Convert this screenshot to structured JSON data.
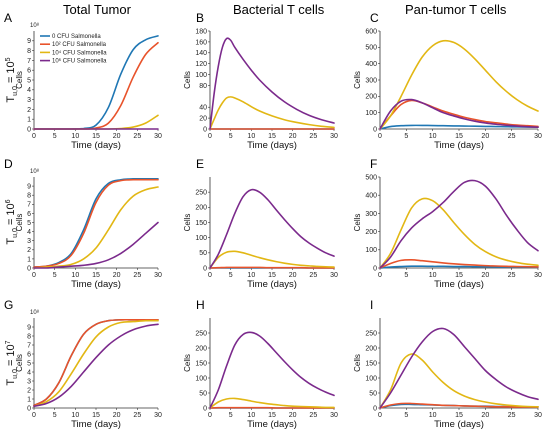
{
  "column_titles": [
    "Total Tumor",
    "Bacterial T cells",
    "Pan-tumor T cells"
  ],
  "row_labels": [
    {
      "main": "T",
      "sub": "u,0",
      "eq": " = 10",
      "sup": "5"
    },
    {
      "main": "T",
      "sub": "u,0",
      "eq": " = 10",
      "sup": "6"
    },
    {
      "main": "T",
      "sub": "u,0",
      "eq": " = 10",
      "sup": "7"
    }
  ],
  "legend": [
    {
      "label": "0 CFU Salmonella",
      "color": "#1f77b4"
    },
    {
      "label": "10² CFU Salmonella",
      "color": "#e8532b"
    },
    {
      "label": "10⁴ CFU Salmonella",
      "color": "#e2b714"
    },
    {
      "label": "10⁶ CFU Salmonella",
      "color": "#7b2a8c"
    }
  ],
  "chart_data": [
    {
      "panel": "A",
      "type": "line",
      "xlabel": "Time (days)",
      "ylabel": "Cells",
      "exponent_label": "10⁸",
      "xlim": [
        0,
        30
      ],
      "ylim": [
        0,
        10
      ],
      "xticks": [
        0,
        5,
        10,
        15,
        20,
        25,
        30
      ],
      "yticks": [
        0,
        1,
        2,
        3,
        4,
        5,
        6,
        7,
        8,
        9
      ],
      "x": [
        0,
        3,
        6,
        9,
        12,
        15,
        18,
        21,
        24,
        27,
        30
      ],
      "series": [
        {
          "name": "0 CFU Salmonella",
          "color": "#1f77b4",
          "values": [
            0,
            0,
            0,
            0,
            0.05,
            0.4,
            2.2,
            5.6,
            8.1,
            9.1,
            9.5
          ]
        },
        {
          "name": "10² CFU Salmonella",
          "color": "#e8532b",
          "values": [
            0,
            0,
            0,
            0,
            0,
            0.1,
            0.6,
            2.4,
            5.3,
            7.6,
            8.8
          ]
        },
        {
          "name": "10⁴ CFU Salmonella",
          "color": "#e2b714",
          "values": [
            0,
            0,
            0,
            0,
            0,
            0,
            0,
            0.05,
            0.2,
            0.6,
            1.4
          ]
        },
        {
          "name": "10⁶ CFU Salmonella",
          "color": "#7b2a8c",
          "values": [
            0,
            0,
            0,
            0,
            0,
            0,
            0,
            0,
            0,
            0,
            0
          ]
        }
      ]
    },
    {
      "panel": "B",
      "type": "line",
      "xlabel": "Time (days)",
      "ylabel": "Cells",
      "xlim": [
        0,
        30
      ],
      "ylim": [
        0,
        180
      ],
      "xticks": [
        0,
        5,
        10,
        15,
        20,
        25,
        30
      ],
      "yticks": [
        0,
        20,
        40,
        80,
        100,
        120,
        140,
        160,
        180
      ],
      "x": [
        0,
        1,
        2,
        3,
        4,
        5,
        6,
        8,
        10,
        12,
        15,
        18,
        21,
        24,
        27,
        30
      ],
      "series": [
        {
          "color": "#1f77b4",
          "values": [
            0,
            0,
            0,
            0,
            0,
            0,
            0,
            0,
            0,
            0,
            0,
            0,
            0,
            0,
            0,
            0
          ]
        },
        {
          "color": "#e8532b",
          "values": [
            0,
            0,
            0,
            0,
            0,
            0,
            0,
            0,
            0,
            0,
            0,
            0,
            0,
            0,
            0,
            0
          ]
        },
        {
          "color": "#e2b714",
          "values": [
            0,
            18,
            35,
            48,
            57,
            59,
            57,
            50,
            41,
            33,
            24,
            17,
            12,
            8,
            5,
            3
          ]
        },
        {
          "color": "#7b2a8c",
          "values": [
            0,
            65,
            115,
            150,
            166,
            163,
            150,
            128,
            108,
            90,
            68,
            50,
            36,
            25,
            17,
            11
          ]
        }
      ]
    },
    {
      "panel": "C",
      "type": "line",
      "xlabel": "Time (days)",
      "ylabel": "Cells",
      "xlim": [
        0,
        30
      ],
      "ylim": [
        0,
        600
      ],
      "xticks": [
        0,
        5,
        10,
        15,
        20,
        25,
        30
      ],
      "yticks": [
        0,
        100,
        200,
        300,
        400,
        500,
        600
      ],
      "x": [
        0,
        2,
        4,
        6,
        8,
        10,
        12,
        14,
        16,
        18,
        20,
        22,
        24,
        26,
        28,
        30
      ],
      "series": [
        {
          "color": "#1f77b4",
          "values": [
            0,
            15,
            20,
            22,
            22,
            21,
            20,
            19,
            18,
            17,
            16,
            15,
            14,
            13,
            12,
            11
          ]
        },
        {
          "color": "#e8532b",
          "values": [
            0,
            80,
            150,
            175,
            160,
            135,
            110,
            90,
            72,
            58,
            46,
            38,
            30,
            24,
            20,
            16
          ]
        },
        {
          "color": "#e2b714",
          "values": [
            0,
            80,
            200,
            330,
            440,
            510,
            540,
            530,
            490,
            430,
            360,
            290,
            230,
            180,
            140,
            110
          ]
        },
        {
          "color": "#7b2a8c",
          "values": [
            0,
            110,
            170,
            180,
            160,
            130,
            100,
            80,
            62,
            48,
            37,
            29,
            23,
            18,
            14,
            11
          ]
        }
      ]
    },
    {
      "panel": "D",
      "type": "line",
      "xlabel": "Time (days)",
      "ylabel": "Cells",
      "exponent_label": "10⁸",
      "xlim": [
        0,
        30
      ],
      "ylim": [
        0,
        10
      ],
      "xticks": [
        0,
        5,
        10,
        15,
        20,
        25,
        30
      ],
      "yticks": [
        0,
        1,
        2,
        3,
        4,
        5,
        6,
        7,
        8,
        9
      ],
      "x": [
        0,
        3,
        6,
        9,
        12,
        15,
        18,
        21,
        24,
        27,
        30
      ],
      "series": [
        {
          "color": "#1f77b4",
          "values": [
            0.1,
            0.2,
            0.6,
            1.6,
            4.2,
            7.6,
            9.3,
            9.7,
            9.8,
            9.8,
            9.8
          ]
        },
        {
          "color": "#e8532b",
          "values": [
            0.1,
            0.2,
            0.5,
            1.4,
            3.8,
            7.2,
            9.1,
            9.6,
            9.7,
            9.7,
            9.7
          ]
        },
        {
          "color": "#e2b714",
          "values": [
            0,
            0.1,
            0.2,
            0.4,
            1.0,
            2.2,
            4.2,
            6.4,
            7.9,
            8.6,
            8.9
          ]
        },
        {
          "color": "#7b2a8c",
          "values": [
            0,
            0,
            0.1,
            0.2,
            0.3,
            0.5,
            0.9,
            1.6,
            2.6,
            3.8,
            5.0
          ]
        }
      ]
    },
    {
      "panel": "E",
      "type": "line",
      "xlabel": "Time (days)",
      "ylabel": "Cells",
      "xlim": [
        0,
        30
      ],
      "ylim": [
        0,
        300
      ],
      "xticks": [
        0,
        5,
        10,
        15,
        20,
        25,
        30
      ],
      "yticks": [
        0,
        50,
        100,
        150,
        200,
        250
      ],
      "x": [
        0,
        2,
        4,
        6,
        8,
        10,
        12,
        14,
        16,
        18,
        20,
        22,
        24,
        26,
        28,
        30
      ],
      "series": [
        {
          "color": "#1f77b4",
          "values": [
            0,
            0,
            0,
            0,
            0,
            0,
            0,
            0,
            0,
            0,
            0,
            0,
            0,
            0,
            0,
            0
          ]
        },
        {
          "color": "#e8532b",
          "values": [
            0,
            1,
            2,
            2,
            2,
            2,
            2,
            1,
            1,
            1,
            1,
            1,
            0,
            0,
            0,
            0
          ]
        },
        {
          "color": "#e2b714",
          "values": [
            0,
            35,
            52,
            55,
            50,
            42,
            34,
            27,
            21,
            16,
            12,
            9,
            7,
            5,
            4,
            3
          ]
        },
        {
          "color": "#7b2a8c",
          "values": [
            0,
            45,
            110,
            180,
            235,
            258,
            250,
            225,
            192,
            160,
            130,
            103,
            82,
            65,
            50,
            39
          ]
        }
      ]
    },
    {
      "panel": "F",
      "type": "line",
      "xlabel": "Time (days)",
      "ylabel": "Cells",
      "xlim": [
        0,
        30
      ],
      "ylim": [
        0,
        500
      ],
      "xticks": [
        0,
        5,
        10,
        15,
        20,
        25,
        30
      ],
      "yticks": [
        0,
        100,
        200,
        300,
        400,
        500
      ],
      "x": [
        0,
        2,
        4,
        6,
        8,
        10,
        12,
        14,
        16,
        18,
        20,
        22,
        24,
        26,
        28,
        30
      ],
      "series": [
        {
          "color": "#1f77b4",
          "values": [
            0,
            5,
            8,
            10,
            10,
            9,
            9,
            8,
            8,
            7,
            7,
            6,
            6,
            5,
            5,
            5
          ]
        },
        {
          "color": "#e8532b",
          "values": [
            0,
            25,
            42,
            45,
            40,
            34,
            28,
            23,
            19,
            16,
            13,
            11,
            9,
            8,
            7,
            6
          ]
        },
        {
          "color": "#e2b714",
          "values": [
            0,
            80,
            210,
            330,
            380,
            370,
            320,
            250,
            185,
            130,
            90,
            62,
            43,
            30,
            21,
            15
          ]
        },
        {
          "color": "#7b2a8c",
          "values": [
            0,
            60,
            150,
            220,
            270,
            310,
            360,
            420,
            470,
            480,
            450,
            380,
            290,
            210,
            140,
            95
          ]
        }
      ]
    },
    {
      "panel": "G",
      "type": "line",
      "xlabel": "Time (days)",
      "ylabel": "Cells",
      "exponent_label": "10⁸",
      "xlim": [
        0,
        30
      ],
      "ylim": [
        0,
        10
      ],
      "xticks": [
        0,
        5,
        10,
        15,
        20,
        25,
        30
      ],
      "yticks": [
        0,
        1,
        2,
        3,
        4,
        5,
        6,
        7,
        8,
        9
      ],
      "x": [
        0,
        3,
        6,
        9,
        12,
        15,
        18,
        21,
        24,
        27,
        30
      ],
      "series": [
        {
          "color": "#1f77b4",
          "values": [
            0.3,
            1.0,
            2.8,
            5.8,
            8.2,
            9.3,
            9.7,
            9.8,
            9.8,
            9.8,
            9.8
          ]
        },
        {
          "color": "#e8532b",
          "values": [
            0.3,
            1.0,
            2.8,
            5.8,
            8.2,
            9.3,
            9.7,
            9.8,
            9.8,
            9.8,
            9.8
          ]
        },
        {
          "color": "#e2b714",
          "values": [
            0.2,
            0.7,
            1.8,
            3.8,
            6.0,
            7.9,
            9.0,
            9.5,
            9.6,
            9.7,
            9.7
          ]
        },
        {
          "color": "#7b2a8c",
          "values": [
            0.2,
            0.5,
            1.2,
            2.4,
            4.0,
            5.6,
            7.0,
            8.0,
            8.7,
            9.1,
            9.3
          ]
        }
      ]
    },
    {
      "panel": "H",
      "type": "line",
      "xlabel": "Time (days)",
      "ylabel": "Cells",
      "xlim": [
        0,
        30
      ],
      "ylim": [
        0,
        300
      ],
      "xticks": [
        0,
        5,
        10,
        15,
        20,
        25,
        30
      ],
      "yticks": [
        0,
        50,
        100,
        150,
        200,
        250
      ],
      "x": [
        0,
        2,
        4,
        6,
        8,
        10,
        12,
        14,
        16,
        18,
        20,
        22,
        24,
        26,
        28,
        30
      ],
      "series": [
        {
          "color": "#1f77b4",
          "values": [
            0,
            0,
            0,
            0,
            0,
            0,
            0,
            0,
            0,
            0,
            0,
            0,
            0,
            0,
            0,
            0
          ]
        },
        {
          "color": "#e8532b",
          "values": [
            0,
            1,
            1,
            1,
            1,
            1,
            1,
            1,
            0,
            0,
            0,
            0,
            0,
            0,
            0,
            0
          ]
        },
        {
          "color": "#e2b714",
          "values": [
            0,
            20,
            30,
            32,
            28,
            23,
            18,
            14,
            11,
            8,
            6,
            5,
            4,
            3,
            2,
            2
          ]
        },
        {
          "color": "#7b2a8c",
          "values": [
            0,
            60,
            140,
            210,
            245,
            252,
            240,
            215,
            185,
            155,
            127,
            102,
            82,
            66,
            53,
            42
          ]
        }
      ]
    },
    {
      "panel": "I",
      "type": "line",
      "xlabel": "Time (days)",
      "ylabel": "Cells",
      "xlim": [
        0,
        30
      ],
      "ylim": [
        0,
        300
      ],
      "xticks": [
        0,
        5,
        10,
        15,
        20,
        25,
        30
      ],
      "yticks": [
        0,
        50,
        100,
        150,
        200,
        250
      ],
      "x": [
        0,
        2,
        4,
        6,
        8,
        10,
        12,
        14,
        16,
        18,
        20,
        22,
        24,
        26,
        28,
        30
      ],
      "series": [
        {
          "color": "#1f77b4",
          "values": [
            0,
            8,
            12,
            12,
            11,
            10,
            9,
            8,
            7,
            6,
            6,
            5,
            5,
            4,
            4,
            4
          ]
        },
        {
          "color": "#e8532b",
          "values": [
            0,
            10,
            15,
            15,
            13,
            11,
            9,
            8,
            7,
            6,
            5,
            4,
            4,
            3,
            3,
            3
          ]
        },
        {
          "color": "#e2b714",
          "values": [
            0,
            60,
            150,
            180,
            160,
            120,
            85,
            58,
            40,
            28,
            20,
            14,
            10,
            7,
            5,
            4
          ]
        },
        {
          "color": "#7b2a8c",
          "values": [
            0,
            50,
            110,
            170,
            220,
            255,
            265,
            245,
            205,
            165,
            125,
            95,
            70,
            52,
            38,
            29
          ]
        }
      ]
    }
  ]
}
